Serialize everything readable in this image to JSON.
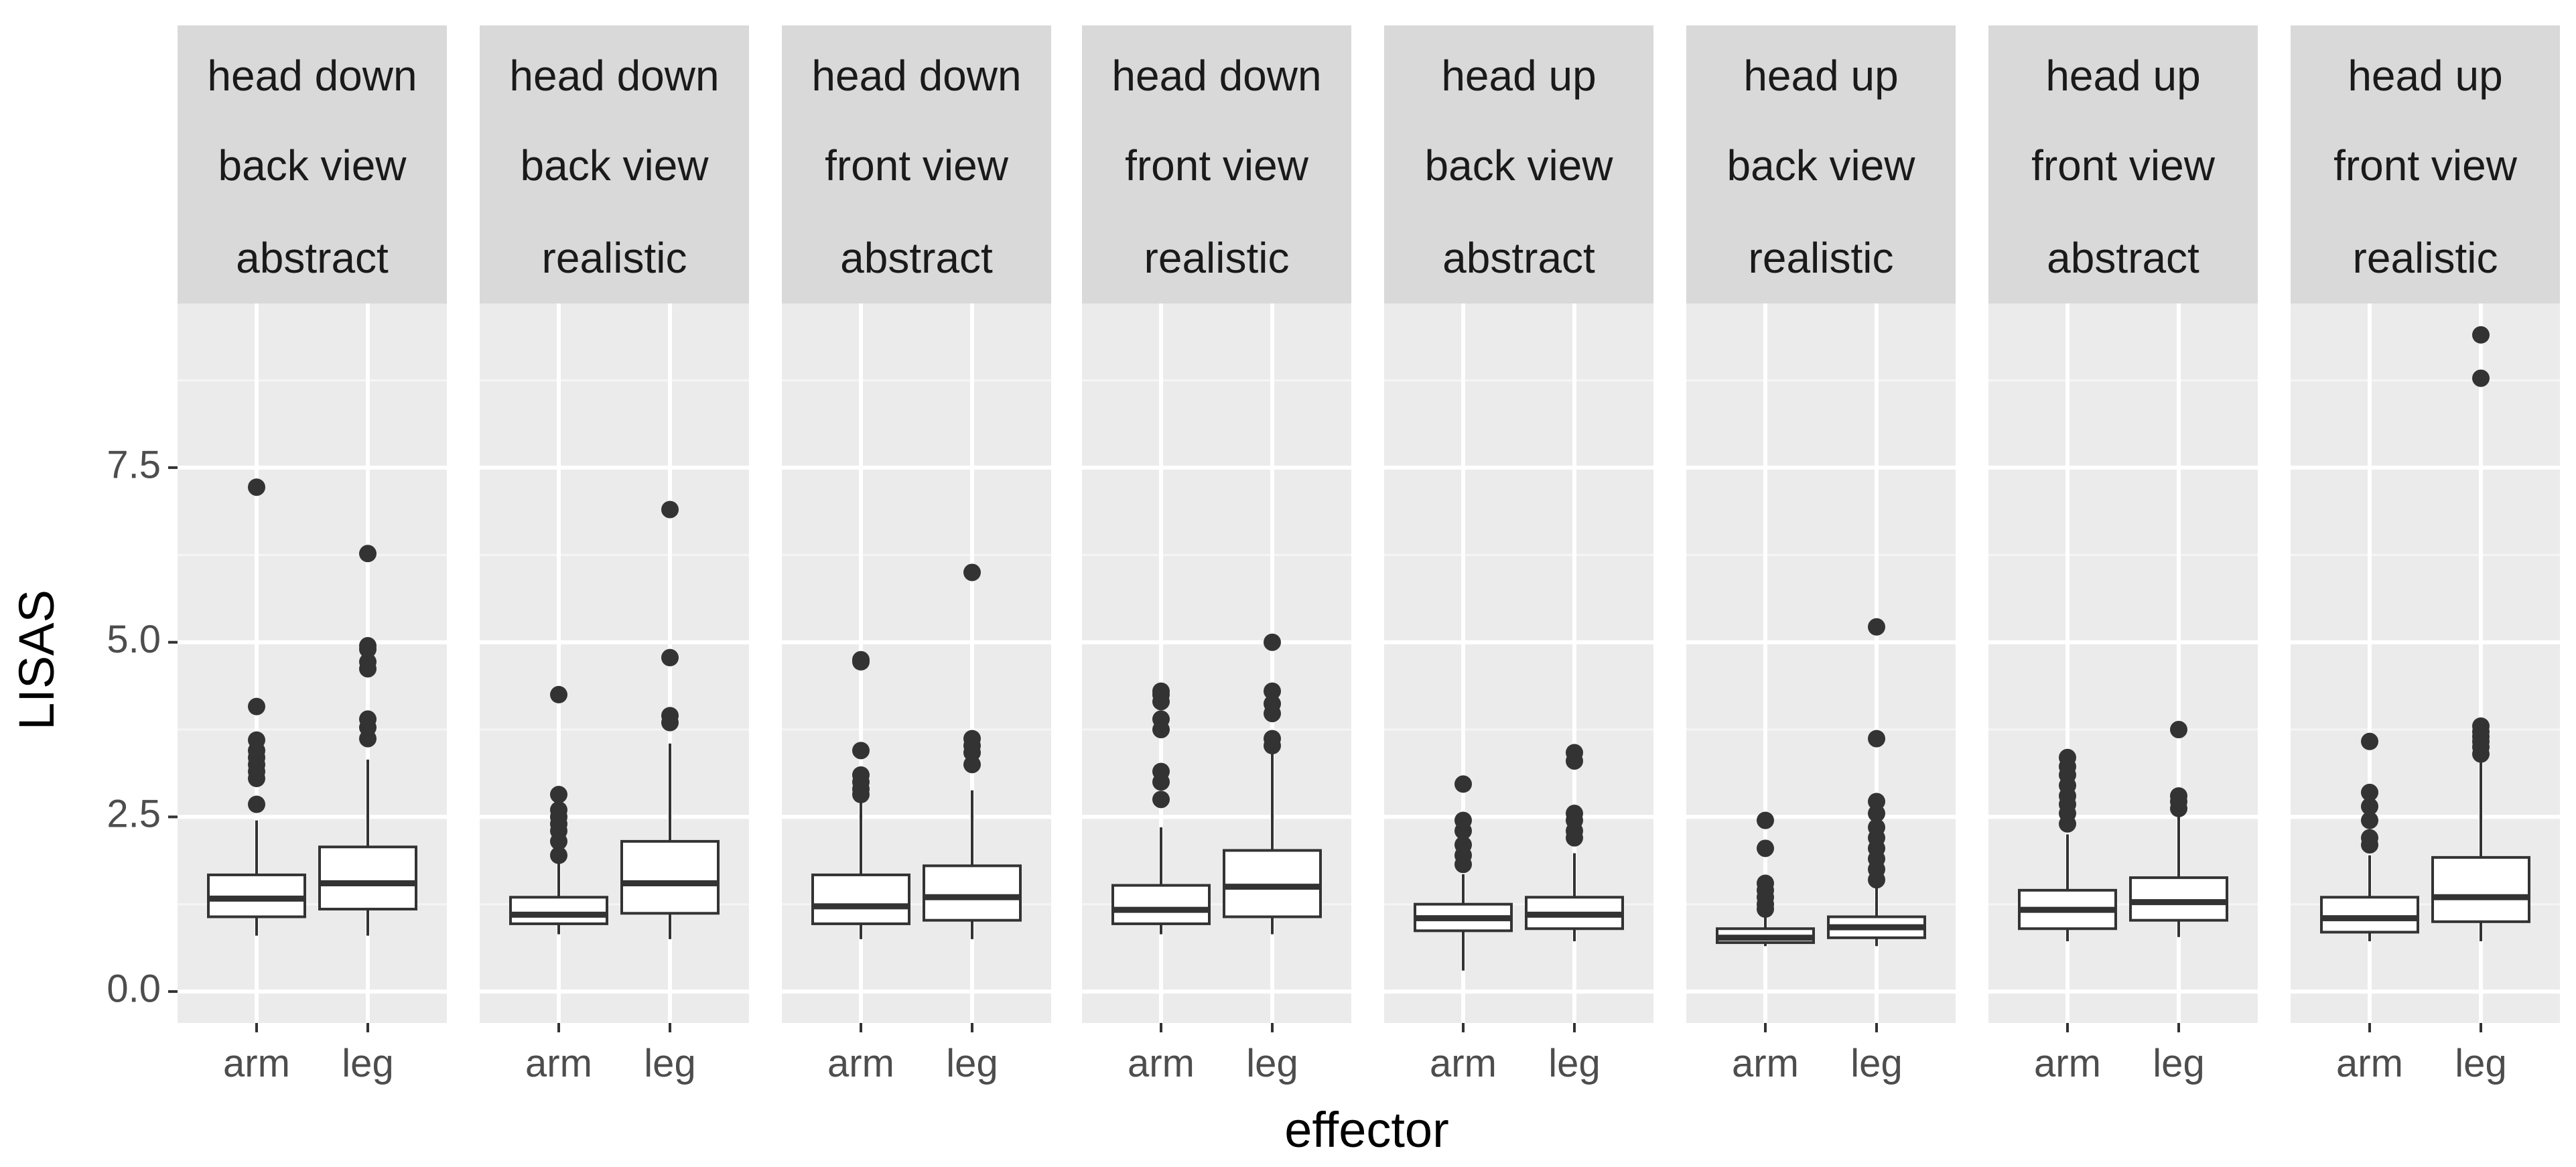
{
  "chart_data": {
    "type": "boxplot",
    "xlabel": "effector",
    "ylabel": "LISAS",
    "ylim": [
      -0.45,
      9.85
    ],
    "y_ticks": [
      "0.0",
      "2.5",
      "5.0",
      "7.5"
    ],
    "y_tick_values": [
      0,
      2.5,
      5,
      7.5
    ],
    "categories": [
      "arm",
      "leg"
    ],
    "panels": [
      {
        "strip": [
          "head down",
          "back view",
          "abstract"
        ],
        "boxes": [
          {
            "category": "arm",
            "lower_whisker": 0.8,
            "q1": 1.07,
            "median": 1.33,
            "q3": 1.67,
            "upper_whisker": 2.45,
            "outliers": [
              2.68,
              3.05,
              3.15,
              3.25,
              3.35,
              3.45,
              3.6,
              4.08,
              7.22
            ]
          },
          {
            "category": "leg",
            "lower_whisker": 0.8,
            "q1": 1.18,
            "median": 1.55,
            "q3": 2.07,
            "upper_whisker": 3.32,
            "outliers": [
              3.62,
              3.78,
              3.9,
              4.62,
              4.72,
              4.9,
              4.95,
              6.27
            ]
          }
        ]
      },
      {
        "strip": [
          "head down",
          "back view",
          "realistic"
        ],
        "boxes": [
          {
            "category": "arm",
            "lower_whisker": 0.82,
            "q1": 0.97,
            "median": 1.1,
            "q3": 1.35,
            "upper_whisker": 1.85,
            "outliers": [
              1.95,
              2.15,
              2.3,
              2.4,
              2.5,
              2.6,
              2.82,
              4.25
            ]
          },
          {
            "category": "leg",
            "lower_whisker": 0.75,
            "q1": 1.12,
            "median": 1.55,
            "q3": 2.15,
            "upper_whisker": 3.55,
            "outliers": [
              3.85,
              3.95,
              4.78,
              6.9
            ]
          }
        ]
      },
      {
        "strip": [
          "head down",
          "front view",
          "abstract"
        ],
        "boxes": [
          {
            "category": "arm",
            "lower_whisker": 0.75,
            "q1": 0.97,
            "median": 1.22,
            "q3": 1.67,
            "upper_whisker": 2.7,
            "outliers": [
              2.82,
              2.9,
              3.0,
              3.1,
              3.45,
              4.72,
              4.75
            ]
          },
          {
            "category": "leg",
            "lower_whisker": 0.75,
            "q1": 1.02,
            "median": 1.35,
            "q3": 1.8,
            "upper_whisker": 2.88,
            "outliers": [
              3.25,
              3.42,
              3.52,
              3.62,
              6.0
            ]
          }
        ]
      },
      {
        "strip": [
          "head down",
          "front view",
          "realistic"
        ],
        "boxes": [
          {
            "category": "arm",
            "lower_whisker": 0.82,
            "q1": 0.97,
            "median": 1.17,
            "q3": 1.52,
            "upper_whisker": 2.35,
            "outliers": [
              2.75,
              3.0,
              3.15,
              3.75,
              3.9,
              4.15,
              4.25,
              4.3
            ]
          },
          {
            "category": "leg",
            "lower_whisker": 0.82,
            "q1": 1.07,
            "median": 1.5,
            "q3": 2.02,
            "upper_whisker": 3.4,
            "outliers": [
              3.52,
              3.62,
              3.98,
              4.12,
              4.3,
              5.0
            ]
          }
        ]
      },
      {
        "strip": [
          "head up",
          "back view",
          "abstract"
        ],
        "boxes": [
          {
            "category": "arm",
            "lower_whisker": 0.3,
            "q1": 0.87,
            "median": 1.05,
            "q3": 1.25,
            "upper_whisker": 1.68,
            "outliers": [
              1.82,
              1.95,
              2.1,
              2.3,
              2.45,
              2.97
            ]
          },
          {
            "category": "leg",
            "lower_whisker": 0.72,
            "q1": 0.9,
            "median": 1.1,
            "q3": 1.35,
            "upper_whisker": 1.98,
            "outliers": [
              2.2,
              2.3,
              2.45,
              2.55,
              3.3,
              3.42
            ]
          }
        ]
      },
      {
        "strip": [
          "head up",
          "back view",
          "realistic"
        ],
        "boxes": [
          {
            "category": "arm",
            "lower_whisker": 0.65,
            "q1": 0.7,
            "median": 0.77,
            "q3": 0.9,
            "upper_whisker": 1.1,
            "outliers": [
              1.18,
              1.25,
              1.35,
              1.45,
              1.55,
              2.05,
              2.45
            ]
          },
          {
            "category": "leg",
            "lower_whisker": 0.65,
            "q1": 0.77,
            "median": 0.92,
            "q3": 1.07,
            "upper_whisker": 1.5,
            "outliers": [
              1.6,
              1.75,
              1.9,
              2.05,
              2.2,
              2.35,
              2.55,
              2.72,
              3.62,
              5.22
            ]
          }
        ]
      },
      {
        "strip": [
          "head up",
          "front view",
          "abstract"
        ],
        "boxes": [
          {
            "category": "arm",
            "lower_whisker": 0.72,
            "q1": 0.9,
            "median": 1.17,
            "q3": 1.45,
            "upper_whisker": 2.25,
            "outliers": [
              2.4,
              2.55,
              2.68,
              2.8,
              2.95,
              3.1,
              3.22,
              3.35
            ]
          },
          {
            "category": "leg",
            "lower_whisker": 0.78,
            "q1": 1.02,
            "median": 1.28,
            "q3": 1.63,
            "upper_whisker": 2.5,
            "outliers": [
              2.62,
              2.72,
              2.8,
              3.75
            ]
          }
        ]
      },
      {
        "strip": [
          "head up",
          "front view",
          "realistic"
        ],
        "boxes": [
          {
            "category": "arm",
            "lower_whisker": 0.72,
            "q1": 0.85,
            "median": 1.05,
            "q3": 1.35,
            "upper_whisker": 1.95,
            "outliers": [
              2.1,
              2.2,
              2.45,
              2.65,
              2.85,
              3.58
            ]
          },
          {
            "category": "leg",
            "lower_whisker": 0.72,
            "q1": 1.0,
            "median": 1.35,
            "q3": 1.92,
            "upper_whisker": 3.28,
            "outliers": [
              3.4,
              3.5,
              3.58,
              3.65,
              3.72,
              3.8,
              8.78,
              9.4
            ]
          }
        ]
      }
    ]
  },
  "colors": {
    "panel_background": "#ebebeb",
    "strip_background": "#d9d9d9",
    "grid_major": "#ffffff",
    "grid_minor": "#f5f5f5",
    "box_fill": "#ffffff",
    "box_line": "#333333",
    "outlier": "#333333",
    "tick": "#333333"
  }
}
